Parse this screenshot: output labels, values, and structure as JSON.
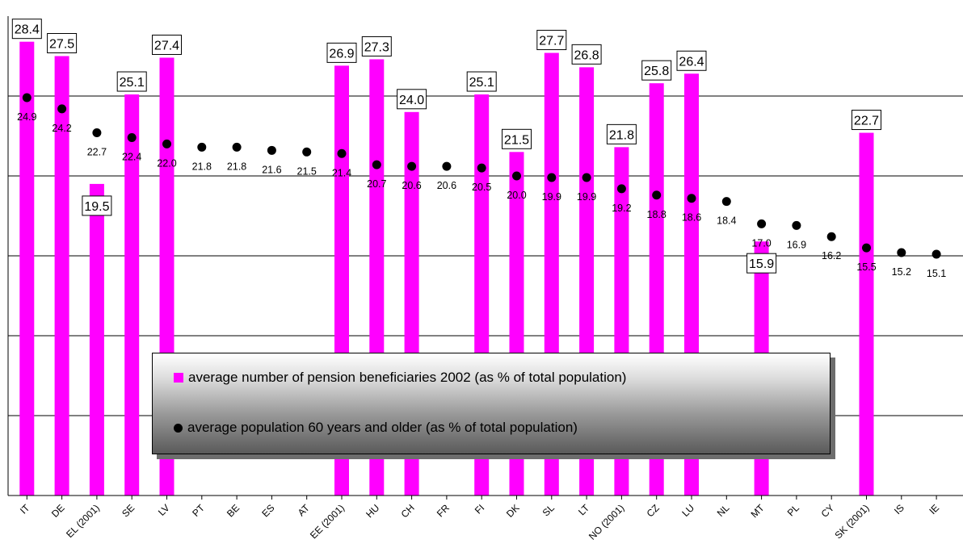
{
  "colors": {
    "bar": "#ff00ff",
    "dot": "#000000",
    "grid": "#000000"
  },
  "chart_data": {
    "type": "bar",
    "categories": [
      "IT",
      "DE",
      "EL (2001)",
      "SE",
      "LV",
      "PT",
      "BE",
      "ES",
      "AT",
      "EE (2001)",
      "HU",
      "CH",
      "FR",
      "FI",
      "DK",
      "SL",
      "LT",
      "NO (2001)",
      "CZ",
      "LU",
      "NL",
      "MT",
      "PL",
      "CY",
      "SK (2001)",
      "IS",
      "IE"
    ],
    "series": [
      {
        "name": "average number of pension beneficiaries 2002 (as % of total population)",
        "type": "bar",
        "values": [
          28.4,
          27.5,
          19.5,
          25.1,
          27.4,
          null,
          null,
          null,
          null,
          26.9,
          27.3,
          24.0,
          null,
          25.1,
          21.5,
          27.7,
          26.8,
          21.8,
          25.8,
          26.4,
          null,
          15.9,
          null,
          null,
          22.7,
          null,
          null
        ],
        "labels": [
          "28.4",
          "27.5",
          "19.5",
          "25.1",
          "27.4",
          "",
          "",
          "",
          "",
          "26.9",
          "27.3",
          "24.0",
          "",
          "25.1",
          "21.5",
          "27.7",
          "26.8",
          "21.8",
          "25.8",
          "26.4",
          "",
          "15.9",
          "",
          "",
          "22.7",
          "",
          ""
        ]
      },
      {
        "name": "average population 60 years and older (as % of total population)",
        "type": "scatter",
        "values": [
          24.9,
          24.2,
          22.7,
          22.4,
          22.0,
          21.8,
          21.8,
          21.6,
          21.5,
          21.4,
          20.7,
          20.6,
          20.6,
          20.5,
          20.0,
          19.9,
          19.9,
          19.2,
          18.8,
          18.6,
          18.4,
          17.0,
          16.9,
          16.2,
          15.5,
          15.2,
          15.1
        ],
        "labels": [
          "24.9",
          "24.2",
          "22.7",
          "22.4",
          "22.0",
          "21.8",
          "21.8",
          "21.6",
          "21.5",
          "21.4",
          "20.7",
          "20.6",
          "20.6",
          "20.5",
          "20.0",
          "19.9",
          "19.9",
          "19.2",
          "18.8",
          "18.6",
          "18.4",
          "17.0",
          "16.9",
          "16.2",
          "15.5",
          "15.2",
          "15.1"
        ]
      }
    ],
    "ylim": [
      0,
      30
    ],
    "grid": true,
    "gridlines": [
      5,
      10,
      15,
      20,
      25
    ],
    "legend_position": "bottom-center"
  }
}
